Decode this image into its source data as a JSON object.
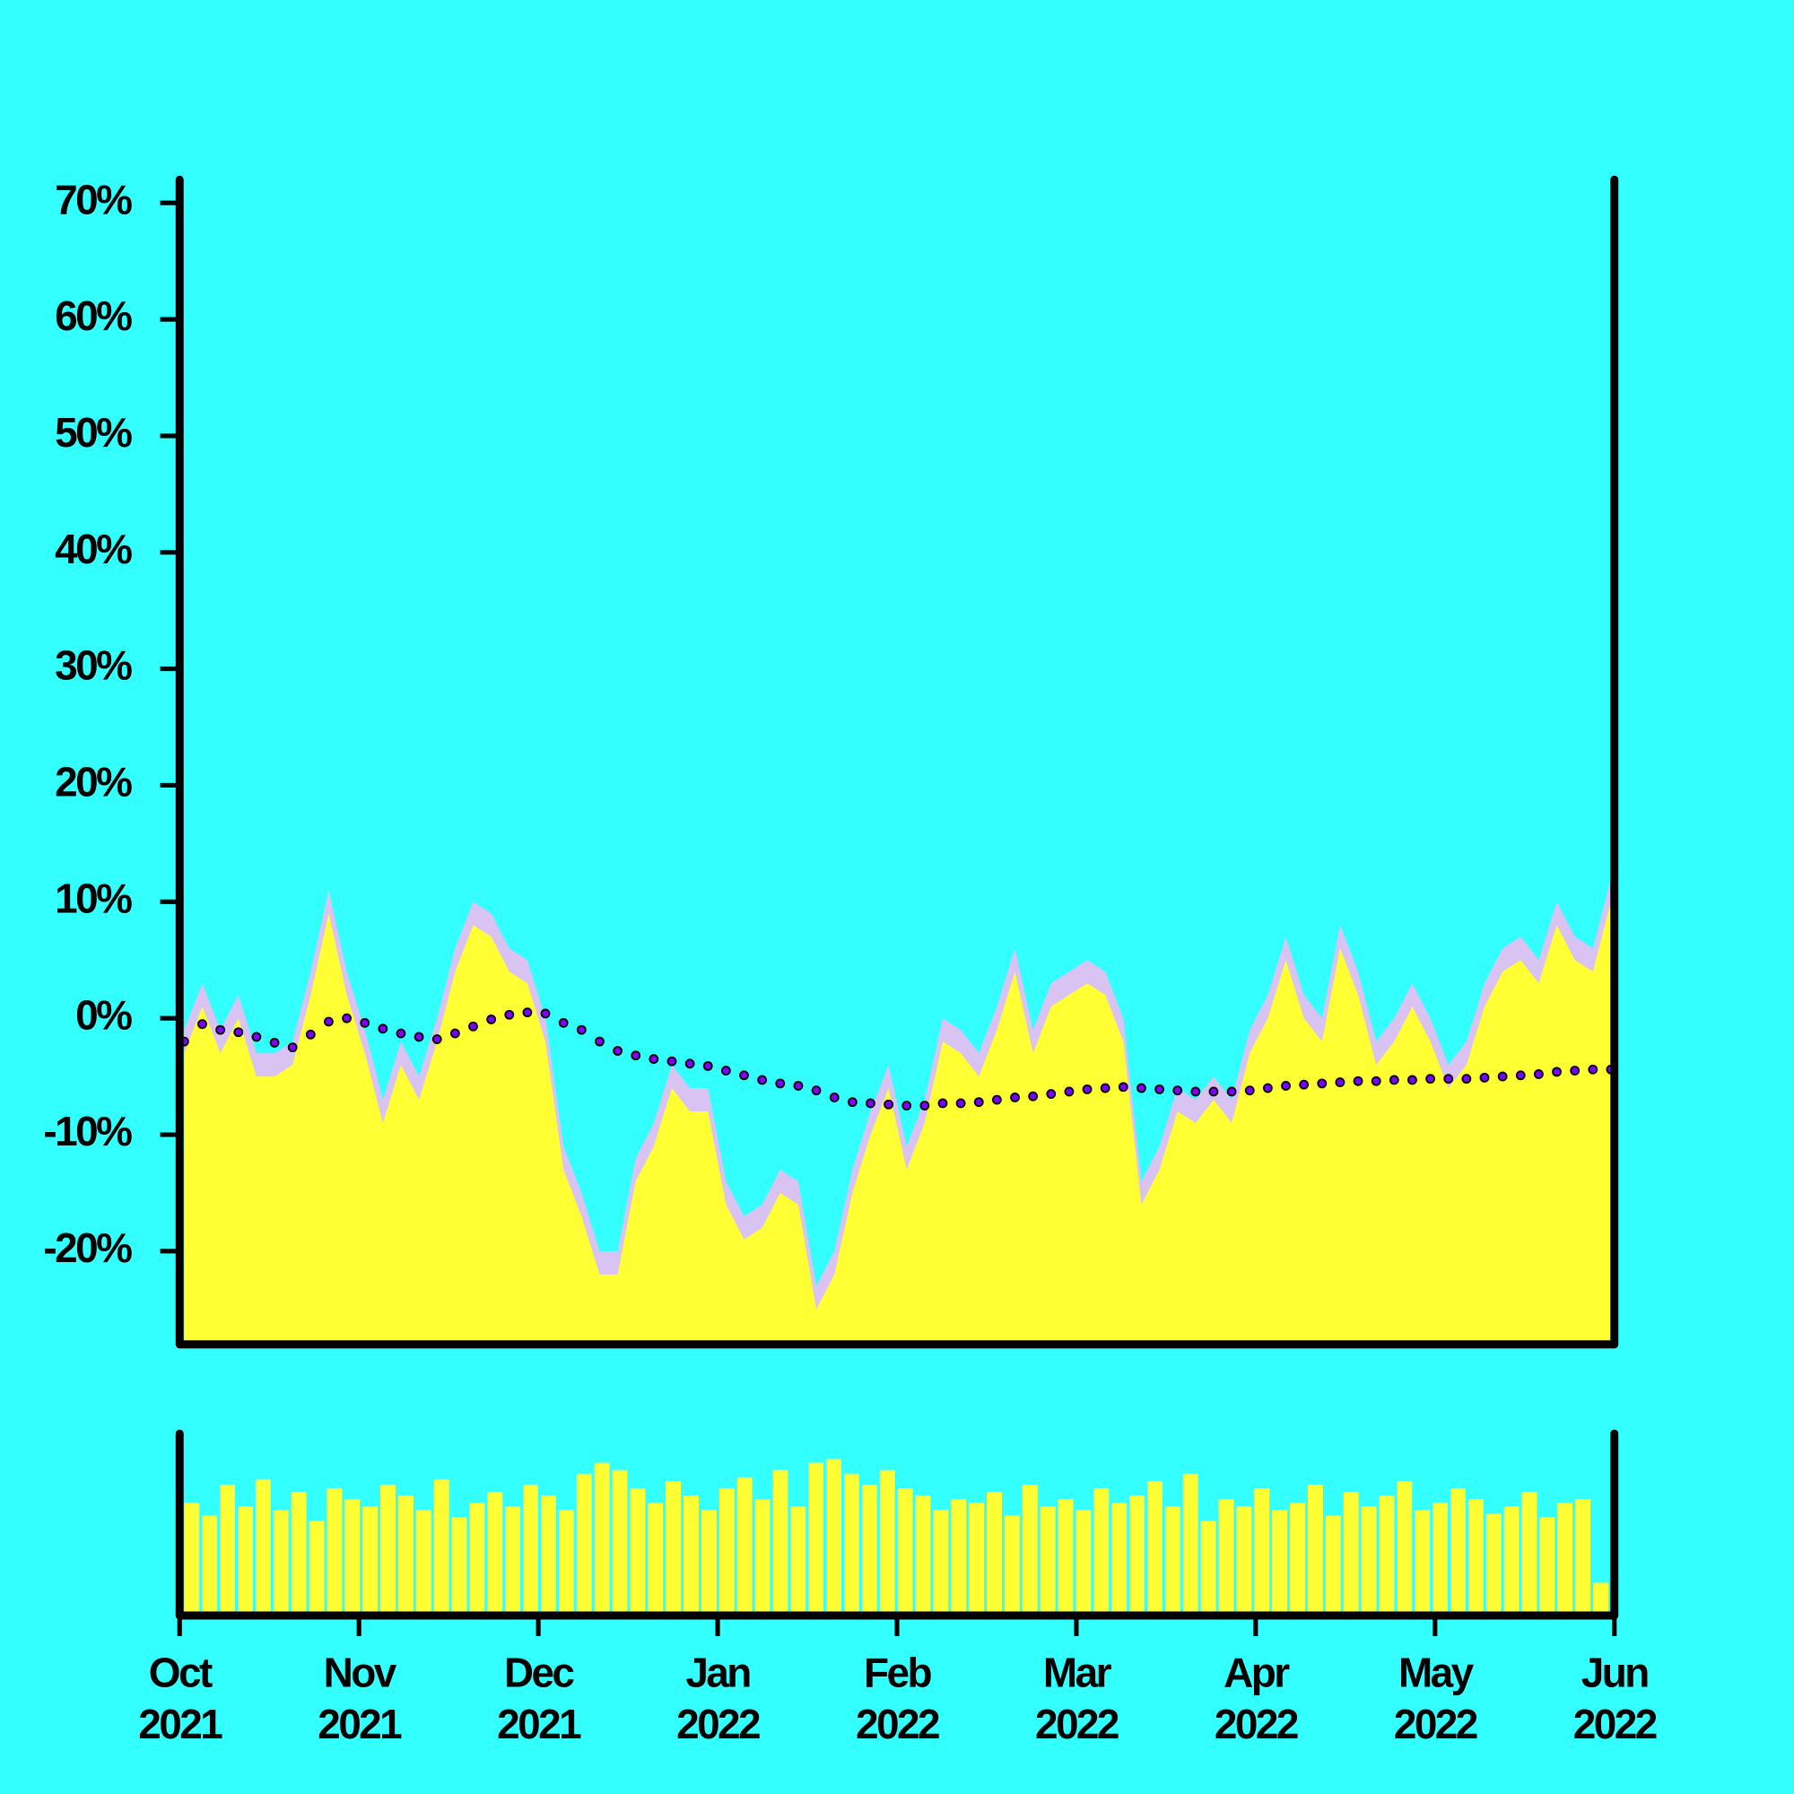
{
  "chart_data": [
    {
      "type": "area",
      "xlim": [
        "2021-10",
        "2022-06"
      ],
      "ylim": [
        -28,
        72
      ],
      "yticks": [
        {
          "value": -20,
          "label": "-20%"
        },
        {
          "value": -10,
          "label": "-10%"
        },
        {
          "value": 0,
          "label": "0%"
        },
        {
          "value": 10,
          "label": "10%"
        },
        {
          "value": 20,
          "label": "20%"
        },
        {
          "value": 30,
          "label": "30%"
        },
        {
          "value": 40,
          "label": "40%"
        },
        {
          "value": 50,
          "label": "50%"
        },
        {
          "value": 60,
          "label": "60%"
        },
        {
          "value": 70,
          "label": "70%"
        }
      ],
      "background": "#33ffff",
      "series": [
        {
          "type": "area",
          "color": "#d9c3f2",
          "values": [
            -1,
            3,
            -1,
            2,
            -3,
            -3,
            -2,
            4,
            11,
            4,
            -1,
            -7,
            -2,
            -5,
            0,
            6,
            10,
            9,
            6,
            5,
            0,
            -11,
            -15,
            -20,
            -20,
            -12,
            -9,
            -4,
            -6,
            -6,
            -14,
            -17,
            -16,
            -13,
            -14,
            -23,
            -20,
            -13,
            -8,
            -4,
            -11,
            -7,
            0,
            -1,
            -3,
            1,
            6,
            -1,
            3,
            4,
            5,
            4,
            0,
            -14,
            -11,
            -6,
            -7,
            -5,
            -7,
            -1,
            2,
            7,
            2,
            0,
            8,
            4,
            -2,
            0,
            3,
            0,
            -4,
            -2,
            3,
            6,
            7,
            5,
            10,
            7,
            6,
            12
          ]
        },
        {
          "type": "area",
          "color": "#ffff33",
          "values": [
            -3,
            1,
            -3,
            0,
            -5,
            -5,
            -4,
            2,
            9,
            2,
            -3,
            -9,
            -4,
            -7,
            -2,
            4,
            8,
            7,
            4,
            3,
            -2,
            -13,
            -17,
            -22,
            -22,
            -14,
            -11,
            -6,
            -8,
            -8,
            -16,
            -19,
            -18,
            -15,
            -16,
            -25,
            -22,
            -15,
            -10,
            -6,
            -13,
            -9,
            -2,
            -3,
            -5,
            -1,
            4,
            -3,
            1,
            2,
            3,
            2,
            -2,
            -16,
            -13,
            -8,
            -9,
            -7,
            -9,
            -3,
            0,
            5,
            0,
            -2,
            6,
            2,
            -4,
            -2,
            1,
            -2,
            -6,
            -4,
            1,
            4,
            5,
            3,
            8,
            5,
            4,
            10
          ]
        },
        {
          "type": "line",
          "color": "#8000ff",
          "values": [
            -2.0,
            -0.5,
            -1.0,
            -1.2,
            -1.6,
            -2.1,
            -2.5,
            -1.4,
            -0.3,
            0.0,
            -0.4,
            -0.9,
            -1.3,
            -1.6,
            -1.8,
            -1.3,
            -0.7,
            -0.1,
            0.3,
            0.5,
            0.4,
            -0.4,
            -1.0,
            -2.0,
            -2.8,
            -3.2,
            -3.5,
            -3.7,
            -3.9,
            -4.1,
            -4.5,
            -4.9,
            -5.3,
            -5.6,
            -5.8,
            -6.2,
            -6.8,
            -7.2,
            -7.3,
            -7.4,
            -7.5,
            -7.5,
            -7.3,
            -7.3,
            -7.2,
            -7.0,
            -6.8,
            -6.7,
            -6.5,
            -6.3,
            -6.1,
            -6.0,
            -5.9,
            -6.0,
            -6.1,
            -6.2,
            -6.3,
            -6.3,
            -6.3,
            -6.2,
            -6.0,
            -5.8,
            -5.7,
            -5.6,
            -5.5,
            -5.4,
            -5.4,
            -5.3,
            -5.3,
            -5.2,
            -5.2,
            -5.2,
            -5.1,
            -5.0,
            -4.9,
            -4.8,
            -4.6,
            -4.5,
            -4.4,
            -4.4
          ]
        }
      ]
    },
    {
      "type": "bar",
      "xlim": [
        "2021-10",
        "2022-06"
      ],
      "xticks": [
        {
          "value": "2021-10",
          "label": [
            "Oct",
            "2021"
          ]
        },
        {
          "value": "2021-11",
          "label": [
            "Nov",
            "2021"
          ]
        },
        {
          "value": "2021-12",
          "label": [
            "Dec",
            "2021"
          ]
        },
        {
          "value": "2022-01",
          "label": [
            "Jan",
            "2022"
          ]
        },
        {
          "value": "2022-02",
          "label": [
            "Feb",
            "2022"
          ]
        },
        {
          "value": "2022-03",
          "label": [
            "Mar",
            "2022"
          ]
        },
        {
          "value": "2022-04",
          "label": [
            "Apr",
            "2022"
          ]
        },
        {
          "value": "2022-05",
          "label": [
            "May",
            "2022"
          ]
        },
        {
          "value": "2022-06",
          "label": [
            "Jun",
            "2022"
          ]
        }
      ],
      "ylim": [
        0,
        100
      ],
      "color": "#ffff33",
      "values": [
        62,
        55,
        72,
        60,
        75,
        58,
        68,
        52,
        70,
        64,
        60,
        72,
        66,
        58,
        75,
        54,
        62,
        68,
        60,
        72,
        66,
        58,
        78,
        84,
        80,
        70,
        62,
        74,
        66,
        58,
        70,
        76,
        64,
        80,
        60,
        84,
        86,
        78,
        72,
        80,
        70,
        66,
        58,
        64,
        62,
        68,
        55,
        72,
        60,
        64,
        58,
        70,
        62,
        66,
        74,
        60,
        78,
        52,
        64,
        60,
        70,
        58,
        62,
        72,
        55,
        68,
        60,
        66,
        74,
        58,
        62,
        70,
        64,
        56,
        60,
        68,
        54,
        62,
        64,
        18
      ]
    }
  ]
}
